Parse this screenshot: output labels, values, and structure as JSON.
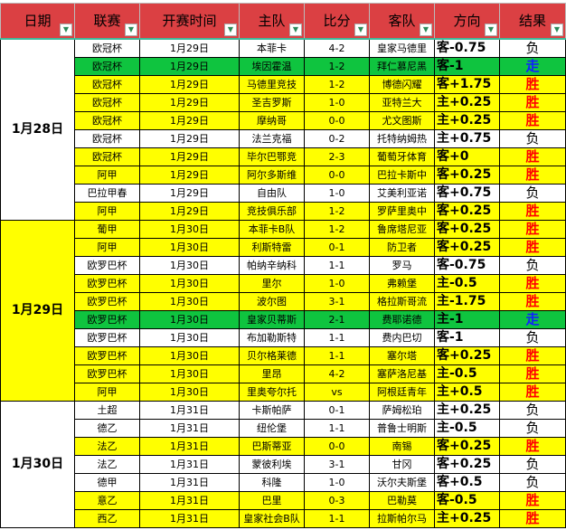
{
  "headers": [
    "日期",
    "联赛",
    "开赛时间",
    "主队",
    "比分",
    "客队",
    "方向",
    "结果"
  ],
  "colors": {
    "header": "#db4043",
    "yellow": "#ffff00",
    "green": "#0fc43f",
    "win": "#ff0000",
    "push": "#1020ff"
  },
  "groups": [
    {
      "date": "1月28日",
      "rows": [
        [
          "欧冠杯",
          "1月29日",
          "本菲卡",
          "4-2",
          "皇家马德里",
          "客-0.75",
          "负",
          "w"
        ],
        [
          "欧冠杯",
          "1月29日",
          "埃因霍温",
          "1-2",
          "拜仁慕尼黑",
          "客-1",
          "走",
          "g"
        ],
        [
          "欧冠杯",
          "1月29日",
          "马德里竞技",
          "1-2",
          "博德闪耀",
          "客+1.75",
          "胜",
          "y"
        ],
        [
          "欧冠杯",
          "1月29日",
          "圣吉罗斯",
          "1-0",
          "亚特兰大",
          "主+0.25",
          "胜",
          "y"
        ],
        [
          "欧冠杯",
          "1月29日",
          "摩纳哥",
          "0-0",
          "尤文图斯",
          "主+0.25",
          "胜",
          "y"
        ],
        [
          "欧冠杯",
          "1月29日",
          "法兰克福",
          "0-2",
          "托特纳姆热",
          "主+0.75",
          "负",
          "w"
        ],
        [
          "欧冠杯",
          "1月29日",
          "毕尔巴鄂竞",
          "2-3",
          "葡萄牙体育",
          "客+0",
          "胜",
          "y"
        ],
        [
          "阿甲",
          "1月29日",
          "阿尔多斯维",
          "0-0",
          "巴拉卡斯中",
          "客+0.25",
          "胜",
          "y"
        ],
        [
          "巴拉甲春",
          "1月29日",
          "自由队",
          "1-0",
          "艾美利亚诺",
          "客+0.75",
          "负",
          "w"
        ],
        [
          "阿甲",
          "1月29日",
          "竞技俱乐部",
          "1-2",
          "罗萨里奥中",
          "客+0.25",
          "胜",
          "y"
        ]
      ]
    },
    {
      "date": "1月29日",
      "rows": [
        [
          "葡甲",
          "1月30日",
          "本菲卡B队",
          "1-2",
          "鲁席塔尼亚",
          "客+0.25",
          "胜",
          "y"
        ],
        [
          "阿甲",
          "1月30日",
          "利斯特雷",
          "0-1",
          "防卫者",
          "客+0.25",
          "胜",
          "y"
        ],
        [
          "欧罗巴杯",
          "1月30日",
          "帕纳辛纳科",
          "1-1",
          "罗马",
          "客-0.75",
          "负",
          "w"
        ],
        [
          "欧罗巴杯",
          "1月30日",
          "里尔",
          "1-0",
          "弗赖堡",
          "主-0.5",
          "胜",
          "y"
        ],
        [
          "欧罗巴杯",
          "1月30日",
          "波尔图",
          "3-1",
          "格拉斯哥流",
          "主-1.75",
          "胜",
          "y"
        ],
        [
          "欧罗巴杯",
          "1月30日",
          "皇家贝蒂斯",
          "2-1",
          "费耶诺德",
          "主-1",
          "走",
          "g"
        ],
        [
          "欧罗巴杯",
          "1月30日",
          "布加勒斯特",
          "1-1",
          "费内巴切",
          "客-1",
          "负",
          "w"
        ],
        [
          "欧罗巴杯",
          "1月30日",
          "贝尔格莱德",
          "1-1",
          "塞尔塔",
          "客+0.25",
          "胜",
          "y"
        ],
        [
          "欧罗巴杯",
          "1月30日",
          "里昂",
          "4-2",
          "塞萨洛尼基",
          "主-0.5",
          "胜",
          "y"
        ],
        [
          "阿甲",
          "1月30日",
          "里奥夸尔托",
          "vs",
          "阿根廷青年",
          "主+0.5",
          "胜",
          "y"
        ]
      ]
    },
    {
      "date": "1月30日",
      "rows": [
        [
          "土超",
          "1月31日",
          "卡斯帕萨",
          "0-1",
          "萨姆松珀",
          "主+0.25",
          "负",
          "w"
        ],
        [
          "德乙",
          "1月31日",
          "纽伦堡",
          "1-1",
          "普鲁士明斯",
          "主-0.5",
          "负",
          "w"
        ],
        [
          "法乙",
          "1月31日",
          "巴斯蒂亚",
          "0-0",
          "南锡",
          "客+0.25",
          "胜",
          "y"
        ],
        [
          "法乙",
          "1月31日",
          "蒙彼利埃",
          "3-1",
          "甘冈",
          "客+0.25",
          "负",
          "w"
        ],
        [
          "德甲",
          "1月31日",
          "科隆",
          "1-0",
          "沃尔夫斯堡",
          "客+0.5",
          "负",
          "w"
        ],
        [
          "意乙",
          "1月31日",
          "巴里",
          "0-3",
          "巴勒莫",
          "客-0.5",
          "胜",
          "y"
        ],
        [
          "西乙",
          "1月31日",
          "皇家社会B队",
          "1-1",
          "拉斯帕尔马",
          "主+0.25",
          "胜",
          "y"
        ]
      ]
    }
  ]
}
